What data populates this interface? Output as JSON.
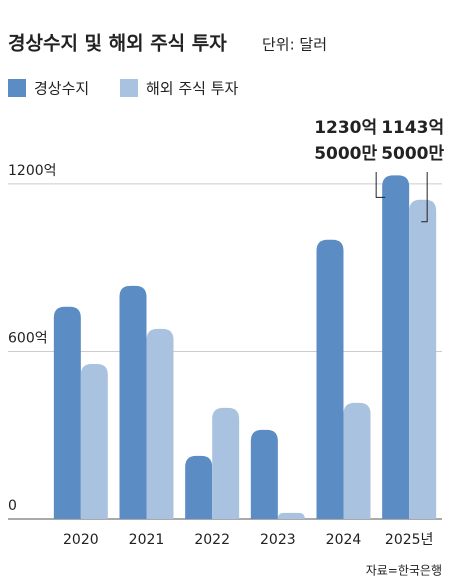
{
  "chart_data": {
    "type": "bar",
    "title": "경상수지 및 해외 주식 투자",
    "subtitle": "단위: 달러",
    "source": "자료=한국은행",
    "categories": [
      "2020",
      "2021",
      "2022",
      "2023",
      "2024",
      "2025년"
    ],
    "series": [
      {
        "name": "경상수지",
        "color": "#5b8cc4",
        "values": [
          760,
          835,
          226,
          319,
          1000,
          1230.5
        ],
        "value_labels": [
          null,
          null,
          null,
          null,
          null,
          "1230억 5000만"
        ]
      },
      {
        "name": "해외 주식 투자",
        "color": "#a9c2e0",
        "values": [
          555,
          681,
          398,
          22,
          416,
          1143.5
        ],
        "value_labels": [
          null,
          null,
          null,
          null,
          null,
          "1143억 5000만"
        ]
      }
    ],
    "ylim": [
      0,
      1300
    ],
    "yticks": [
      0,
      {
        "value": 600,
        "label": "600억"
      },
      {
        "value": 1200,
        "label": "1200억"
      }
    ],
    "grid": true
  }
}
